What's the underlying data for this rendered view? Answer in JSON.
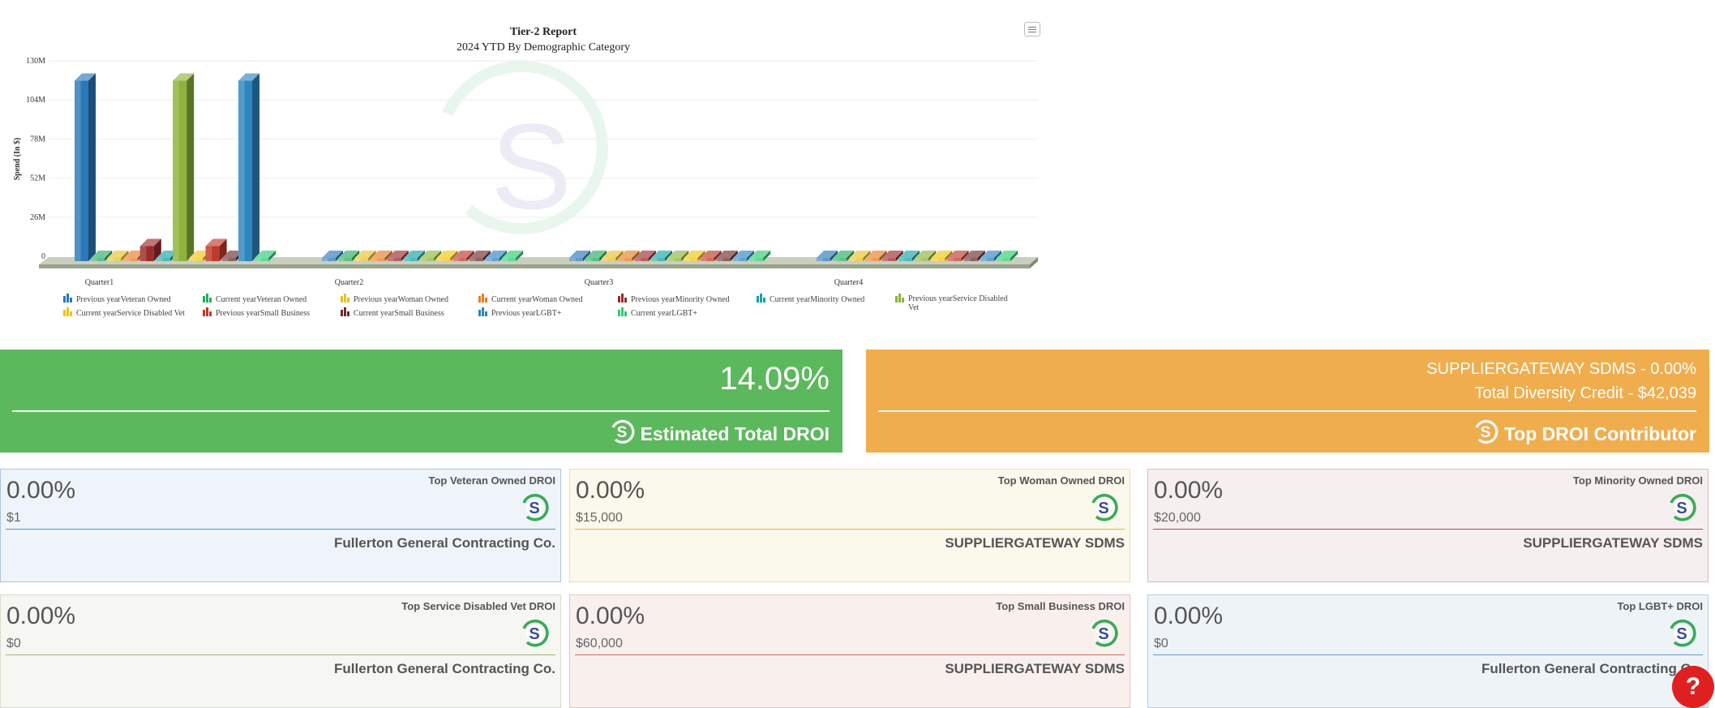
{
  "chart": {
    "menu_icon": "hamburger-menu-icon",
    "watermark_icon": "suppliergateway-logo-watermark"
  },
  "chart_data": {
    "type": "bar",
    "title": "Tier-2 Report",
    "subtitle": "2024 YTD By Demographic Category",
    "xlabel": "",
    "ylabel": "Spend (In $)",
    "ylim": [
      0,
      130000000
    ],
    "yticks": [
      "0",
      "26M",
      "52M",
      "78M",
      "104M",
      "130M"
    ],
    "grid": true,
    "legend_position": "bottom",
    "categories": [
      "Quarter1",
      "Quarter2",
      "Quarter3",
      "Quarter4"
    ],
    "series": [
      {
        "name": "Previous yearVeteran Owned",
        "color": "#2a78b8",
        "values": [
          120000000,
          0,
          0,
          0
        ]
      },
      {
        "name": "Current yearVeteran Owned",
        "color": "#27ae60",
        "values": [
          0,
          0,
          0,
          0
        ]
      },
      {
        "name": "Previous yearWoman Owned",
        "color": "#e6c229",
        "values": [
          0,
          0,
          0,
          0
        ]
      },
      {
        "name": "Current yearWoman Owned",
        "color": "#e67e22",
        "values": [
          0,
          0,
          0,
          0
        ]
      },
      {
        "name": "Previous yearMinority Owned",
        "color": "#9b2a2a",
        "values": [
          10000000,
          0,
          0,
          0
        ]
      },
      {
        "name": "Current yearMinority Owned",
        "color": "#16a2a6",
        "values": [
          0,
          0,
          0,
          0
        ]
      },
      {
        "name": "Previous yearService Disabled Vet",
        "color": "#8db33a",
        "values": [
          120000000,
          0,
          0,
          0
        ]
      },
      {
        "name": "Current yearService Disabled Vet",
        "color": "#f1c40f",
        "values": [
          0,
          0,
          0,
          0
        ]
      },
      {
        "name": "Previous yearSmall Business",
        "color": "#c0392b",
        "values": [
          10000000,
          0,
          0,
          0
        ]
      },
      {
        "name": "Current yearSmall Business",
        "color": "#6b2d2d",
        "values": [
          0,
          0,
          0,
          0
        ]
      },
      {
        "name": "Previous yearLGBT+",
        "color": "#2e86c1",
        "values": [
          120000000,
          0,
          0,
          0
        ]
      },
      {
        "name": "Current yearLGBT+",
        "color": "#2ecc71",
        "values": [
          0,
          0,
          0,
          0
        ]
      }
    ]
  },
  "summary": {
    "droi_percent": "14.09%",
    "droi_label": "Estimated Total DROI",
    "top_line1": "SUPPLIERGATEWAY SDMS - 0.00%",
    "top_line2": "Total Diversity Credit - $42,039",
    "top_label": "Top DROI Contributor",
    "logo_icon": "suppliergateway-logo-icon"
  },
  "cards": [
    {
      "title": "Top Veteran Owned DROI",
      "percent": "0.00%",
      "amount": "$1",
      "name": "Fullerton General Contracting Co.",
      "bg": "#eef4f9",
      "border": "#a9c4e0",
      "rule": "#5b8fbf"
    },
    {
      "title": "Top Woman Owned DROI",
      "percent": "0.00%",
      "amount": "$15,000",
      "name": "SUPPLIERGATEWAY SDMS",
      "bg": "#fbf8ec",
      "border": "#ecdfae",
      "rule": "#d9b84a"
    },
    {
      "title": "Top Minority Owned DROI",
      "percent": "0.00%",
      "amount": "$20,000",
      "name": "SUPPLIERGATEWAY SDMS",
      "bg": "#f5efef",
      "border": "#dcbcbc",
      "rule": "#a85050"
    },
    {
      "title": "Top Service Disabled Vet DROI",
      "percent": "0.00%",
      "amount": "$0",
      "name": "Fullerton General Contracting Co.",
      "bg": "#f6f7f2",
      "border": "#d8dcc8",
      "rule": "#a7af7d"
    },
    {
      "title": "Top Small Business DROI",
      "percent": "0.00%",
      "amount": "$60,000",
      "name": "SUPPLIERGATEWAY SDMS",
      "bg": "#f9f0ee",
      "border": "#e6c3bc",
      "rule": "#c0705e"
    },
    {
      "title": "Top LGBT+ DROI",
      "percent": "0.00%",
      "amount": "$0",
      "name": "Fullerton General Contracting Co.",
      "bg": "#eef3f8",
      "border": "#b7cde2",
      "rule": "#6a98c4"
    }
  ],
  "help": {
    "label": "?"
  }
}
